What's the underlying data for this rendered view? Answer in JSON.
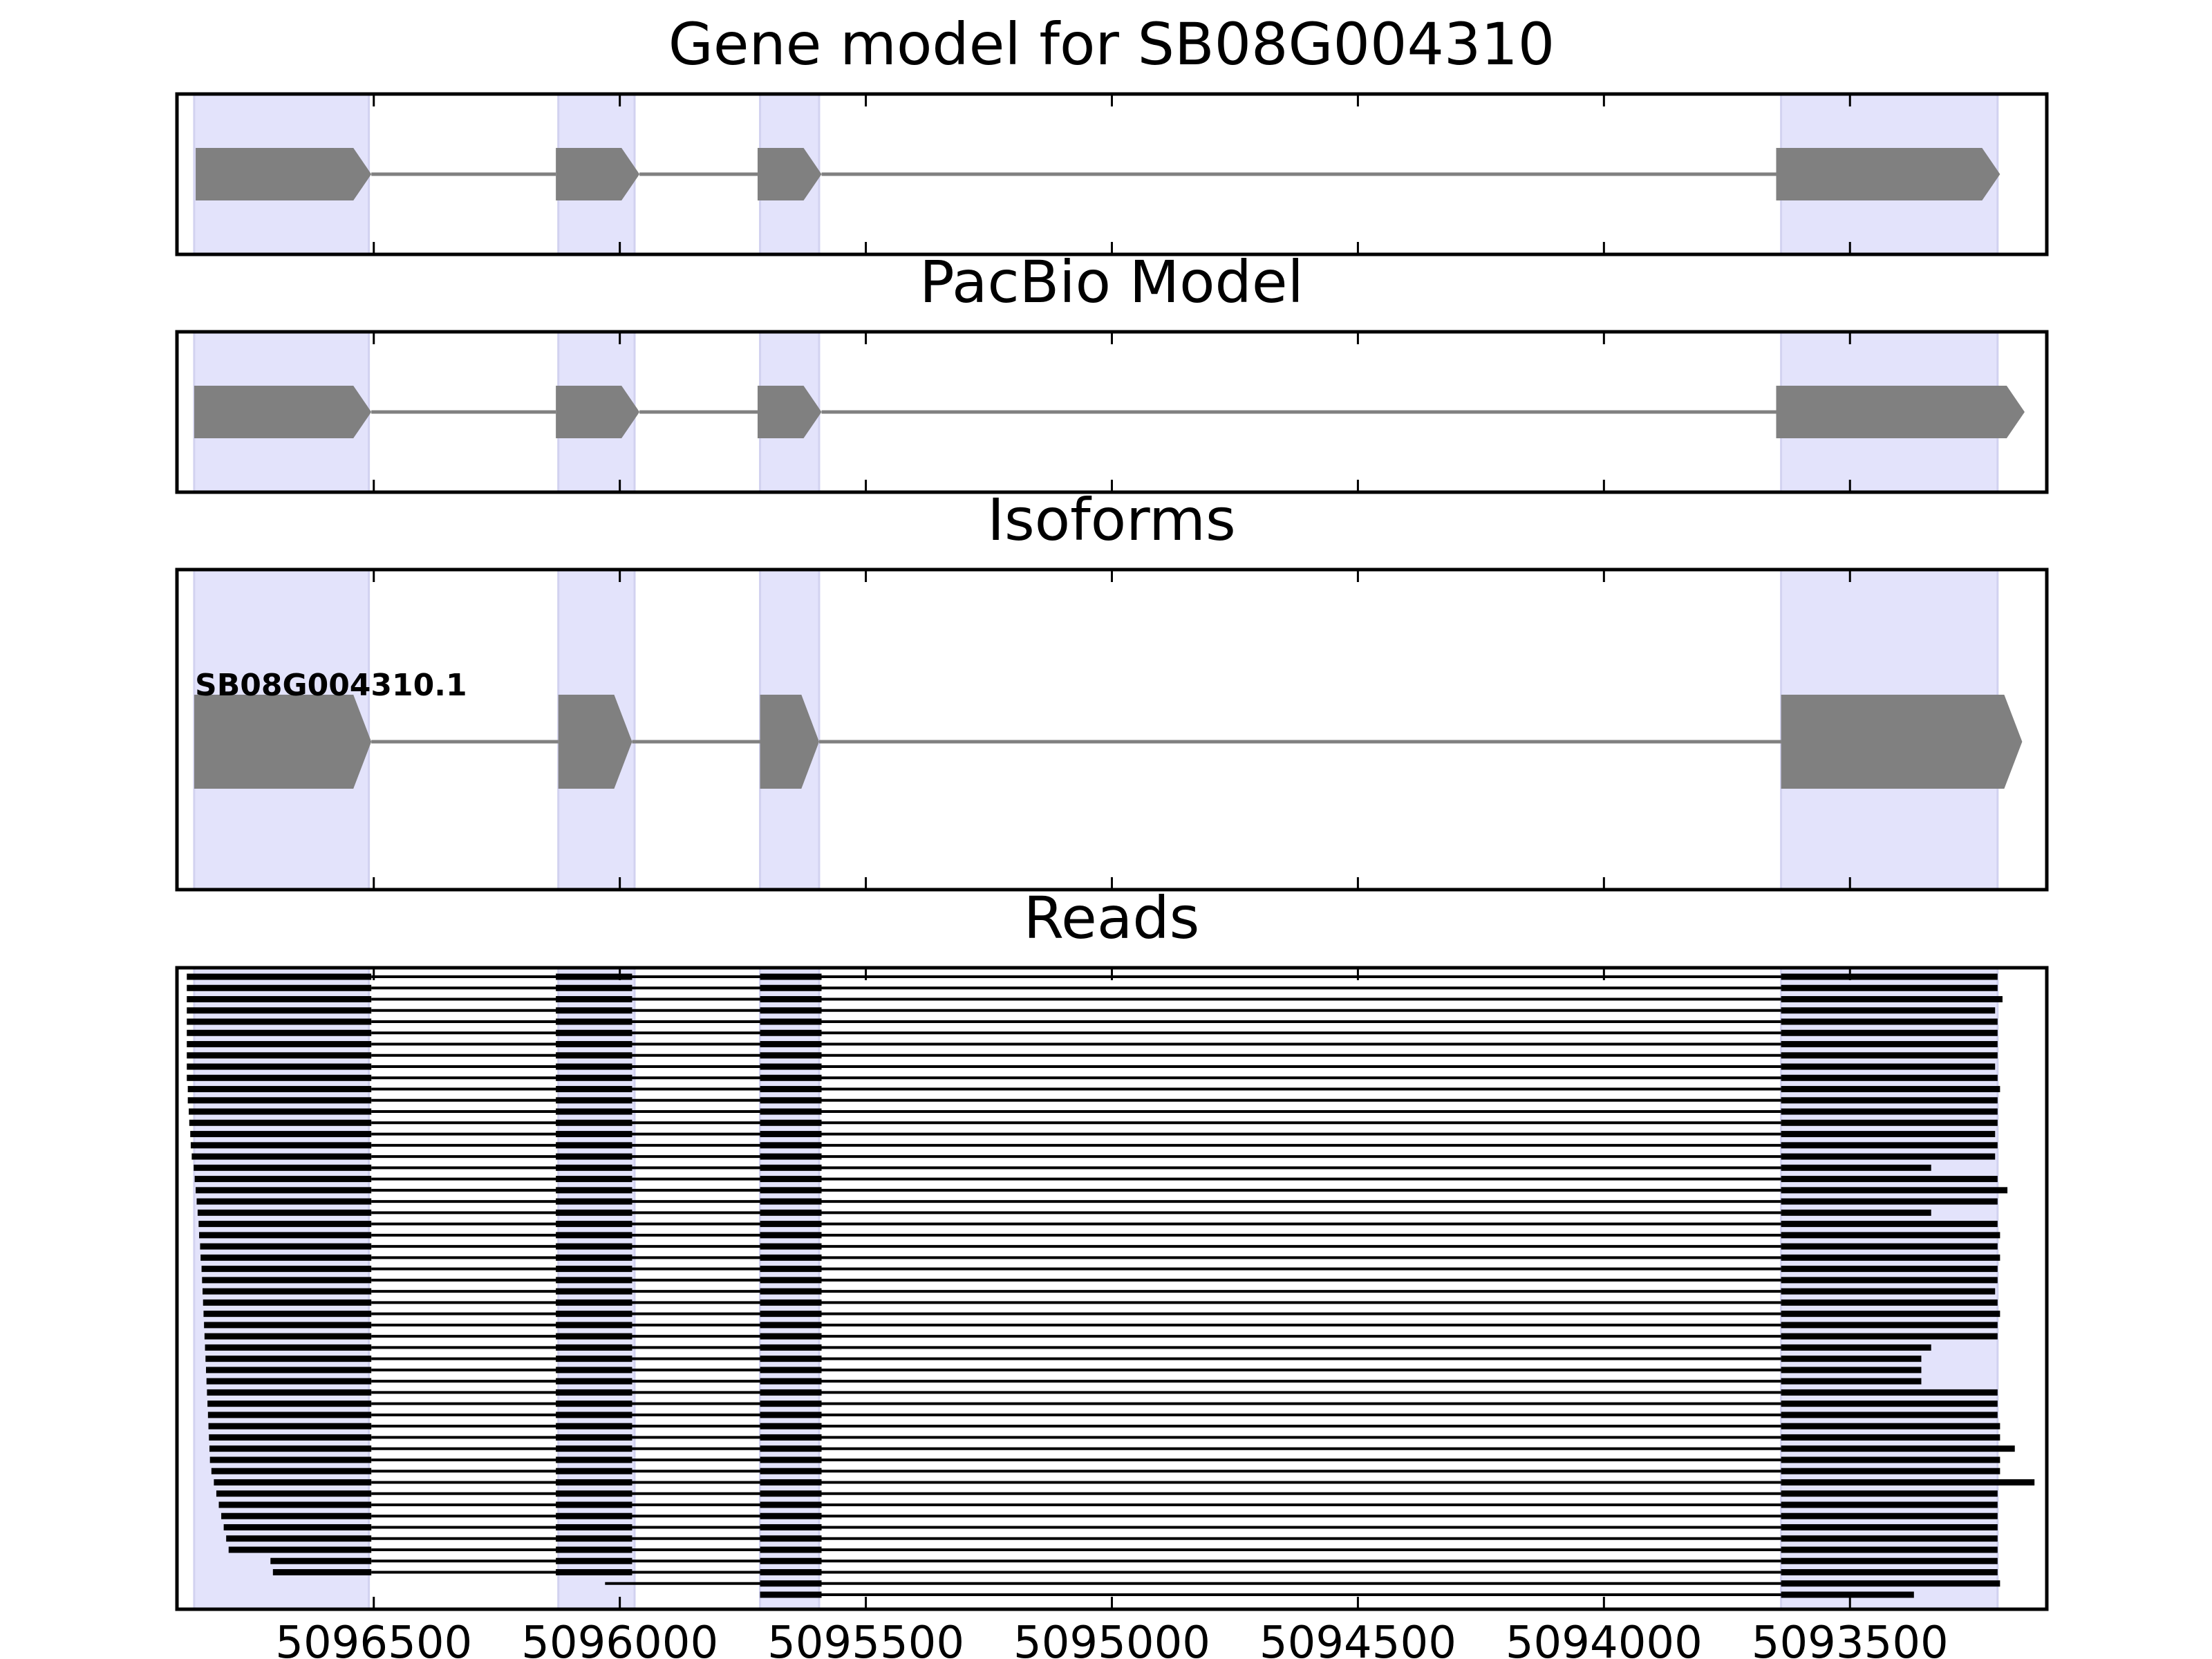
{
  "colors": {
    "feature": "#808080",
    "exon_highlight": "#e3e3fb",
    "read": "#000000",
    "axis": "#000000",
    "background": "#ffffff"
  },
  "chart_data": [
    {
      "type": "gene-track",
      "title": "Gene model for SB08G004310",
      "xlim": [
        5096900,
        5093100
      ],
      "exons": [
        [
          5096865,
          5096510
        ],
        [
          5096125,
          5095970
        ],
        [
          5095715,
          5095595
        ],
        [
          5093640,
          5093200
        ]
      ],
      "tips": [
        5096862,
        5096505,
        5096130,
        5095960,
        5095720,
        5095590,
        5093650,
        5093195
      ]
    },
    {
      "type": "gene-track",
      "title": "PacBio Model",
      "xlim": [
        5096900,
        5093100
      ],
      "exons": [
        [
          5096865,
          5096510
        ],
        [
          5096125,
          5095970
        ],
        [
          5095715,
          5095595
        ],
        [
          5093640,
          5093200
        ]
      ],
      "tips": [
        5096865,
        5096505,
        5096130,
        5095960,
        5095720,
        5095590,
        5093650,
        5093145
      ]
    },
    {
      "type": "gene-track",
      "title": "Isoforms",
      "xlim": [
        5096900,
        5093100
      ],
      "exons": [
        [
          5096865,
          5096510
        ],
        [
          5096125,
          5095970
        ],
        [
          5095715,
          5095595
        ],
        [
          5093640,
          5093200
        ]
      ],
      "isoform_label": "SB08G004310.1",
      "tips": [
        5096865,
        5096505,
        5096125,
        5095975,
        5095715,
        5095595,
        5093640,
        5093150
      ]
    },
    {
      "type": "read-track",
      "title": "Reads",
      "xlim": [
        5096900,
        5093100
      ],
      "xticks": [
        5096500,
        5096000,
        5095500,
        5095000,
        5094500,
        5094000,
        5093500
      ],
      "xtick_labels": [
        "5096500",
        "5096000",
        "5095500",
        "5095000",
        "5094500",
        "5094000",
        "5093500"
      ],
      "exons": [
        [
          5096865,
          5096510
        ],
        [
          5096125,
          5095970
        ],
        [
          5095715,
          5095595
        ],
        [
          5093640,
          5093200
        ]
      ],
      "intron_read_span": [
        5096510,
        5093640
      ],
      "read_segments": [
        5096890,
        5096505,
        5096130,
        5095975,
        5095715,
        5095590,
        5093640
      ],
      "reads": [
        [
          5096880,
          5093200
        ],
        [
          5096880,
          5093200
        ],
        [
          5096880,
          5093190
        ],
        [
          5096880,
          5093205
        ],
        [
          5096880,
          5093200
        ],
        [
          5096880,
          5093200
        ],
        [
          5096880,
          5093200
        ],
        [
          5096880,
          5093200
        ],
        [
          5096880,
          5093205
        ],
        [
          5096880,
          5093200
        ],
        [
          5096878,
          5093195
        ],
        [
          5096878,
          5093200
        ],
        [
          5096876,
          5093200
        ],
        [
          5096875,
          5093200
        ],
        [
          5096873,
          5093205
        ],
        [
          5096872,
          5093200
        ],
        [
          5096870,
          5093205
        ],
        [
          5096866,
          5093335
        ],
        [
          5096864,
          5093200
        ],
        [
          5096862,
          5093180
        ],
        [
          5096860,
          5093200
        ],
        [
          5096858,
          5093335
        ],
        [
          5096856,
          5093200
        ],
        [
          5096855,
          5093195
        ],
        [
          5096853,
          5093200
        ],
        [
          5096852,
          5093195
        ],
        [
          5096850,
          5093200
        ],
        [
          5096849,
          5093200
        ],
        [
          5096848,
          5093205
        ],
        [
          5096847,
          5093200
        ],
        [
          5096846,
          5093195
        ],
        [
          5096845,
          5093200
        ],
        [
          5096844,
          5093200
        ],
        [
          5096843,
          5093335
        ],
        [
          5096842,
          5093355
        ],
        [
          5096841,
          5093355
        ],
        [
          5096840,
          5093355
        ],
        [
          5096839,
          5093200
        ],
        [
          5096838,
          5093200
        ],
        [
          5096837,
          5093200
        ],
        [
          5096836,
          5093195
        ],
        [
          5096835,
          5093195
        ],
        [
          5096834,
          5093165
        ],
        [
          5096833,
          5093195
        ],
        [
          5096830,
          5093195
        ],
        [
          5096825,
          5093125
        ],
        [
          5096820,
          5093200
        ],
        [
          5096815,
          5093200
        ],
        [
          5096810,
          5093200
        ],
        [
          5096805,
          5093200
        ],
        [
          5096800,
          5093200
        ],
        [
          5096795,
          5093200
        ],
        [
          5096710,
          5093200
        ],
        [
          5096705,
          5093200
        ],
        [
          5096030,
          5093195
        ],
        [
          null,
          5093370
        ]
      ]
    }
  ]
}
